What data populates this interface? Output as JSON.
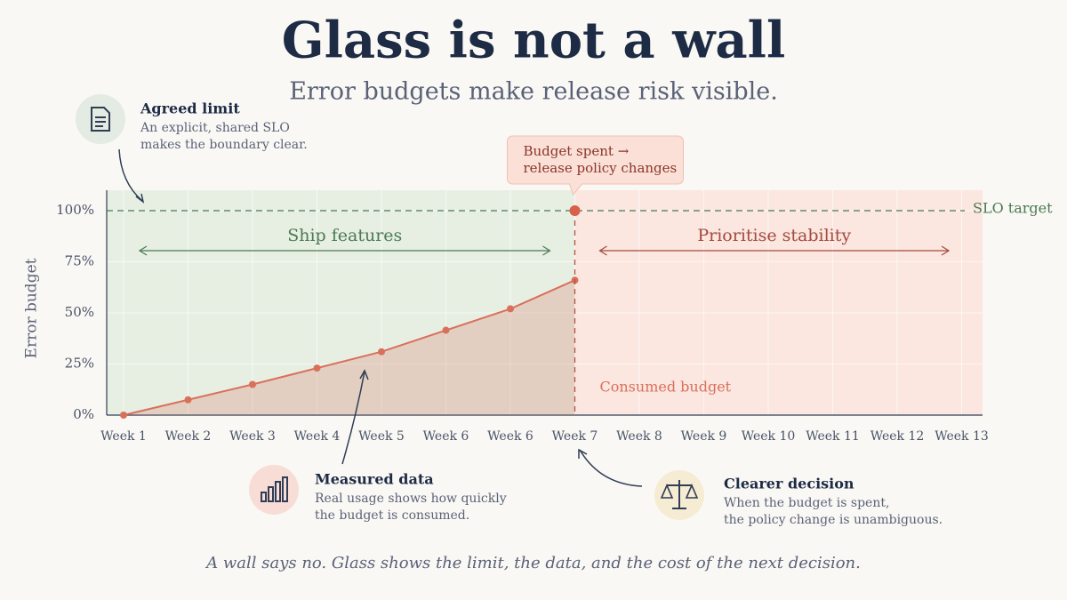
{
  "chart_data": {
    "type": "line",
    "title": "Glass is not a wall",
    "subtitle": "Error budgets make release risk visible.",
    "y_label": "Error budget",
    "categories": [
      "Week 1",
      "Week 2",
      "Week 3",
      "Week 4",
      "Week 5",
      "Week 6",
      "Week 6",
      "Week 7",
      "Week 8",
      "Week 9",
      "Week 10",
      "Week 11",
      "Week 12",
      "Week 13"
    ],
    "series": [
      {
        "name": "Consumed budget",
        "color": "#d9705a",
        "values": [
          0,
          7.5,
          15,
          23,
          31,
          41.5,
          52,
          66,
          null,
          null,
          null,
          null,
          null,
          null
        ]
      }
    ],
    "ylim": [
      0,
      110
    ],
    "yticks": [
      {
        "value": 0,
        "label": "0%"
      },
      {
        "value": 25,
        "label": "25%"
      },
      {
        "value": 50,
        "label": "50%"
      },
      {
        "value": 75,
        "label": "75%"
      },
      {
        "value": 100,
        "label": "100%"
      }
    ],
    "target": {
      "label": "SLO target",
      "value": 100,
      "color": "#4a7a52"
    },
    "zones": [
      {
        "label": "Ship features",
        "color": "#e7efe3",
        "text_color": "#4a7a52"
      },
      {
        "label": "Prioritise stability",
        "color": "#fbe6e0",
        "text_color": "#a34a3c"
      }
    ],
    "callout": [
      "Budget spent →",
      "release policy changes"
    ],
    "annotations": [
      {
        "title": "Agreed limit",
        "lines": [
          "An explicit, shared SLO",
          "makes the boundary clear."
        ]
      },
      {
        "title": "Measured data",
        "lines": [
          "Real usage shows how quickly",
          "the budget is consumed."
        ]
      },
      {
        "title": "Clearer decision",
        "lines": [
          "When the budget is spent,",
          "the policy change is unambiguous."
        ]
      }
    ],
    "caption": "A wall says no. Glass shows the limit, the data, and the cost of the next decision."
  }
}
